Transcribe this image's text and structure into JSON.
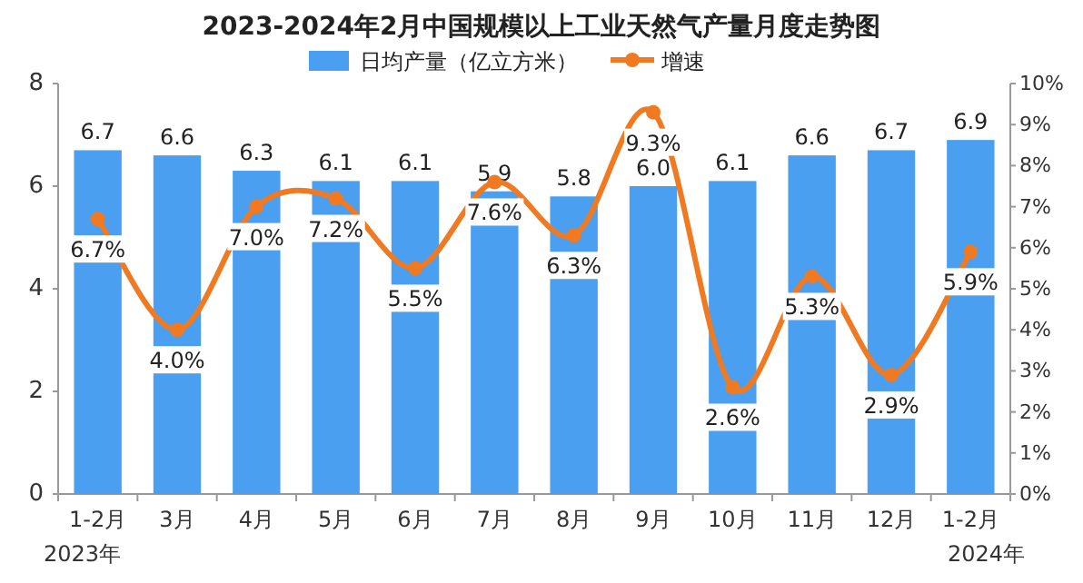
{
  "chart_data": {
    "type": "bar",
    "title": "2023-2024年2月中国规模以上工业天然气产量月度走势图",
    "categories": [
      "1-2月",
      "3月",
      "4月",
      "5月",
      "6月",
      "7月",
      "8月",
      "9月",
      "10月",
      "11月",
      "12月",
      "1-2月"
    ],
    "series": [
      {
        "name": "日均产量（亿立方米）",
        "color": "#4a9ff0",
        "values": [
          6.7,
          6.6,
          6.3,
          6.1,
          6.1,
          5.9,
          5.8,
          6.0,
          6.1,
          6.6,
          6.7,
          6.9
        ],
        "value_labels": [
          "6.7",
          "6.6",
          "6.3",
          "6.1",
          "6.1",
          "5.9",
          "5.8",
          "6.0",
          "6.1",
          "6.6",
          "6.7",
          "6.9"
        ]
      },
      {
        "name": "增速",
        "type": "line",
        "axis": "y2",
        "color": "#f07a22",
        "marker": "circle",
        "values": [
          6.7,
          4.0,
          7.0,
          7.2,
          5.5,
          7.6,
          6.3,
          9.3,
          2.6,
          5.3,
          2.9,
          5.9
        ],
        "value_labels": [
          "6.7%",
          "4.0%",
          "7.0%",
          "7.2%",
          "5.5%",
          "7.6%",
          "6.3%",
          "9.3%",
          "2.6%",
          "5.3%",
          "2.9%",
          "5.9%"
        ]
      }
    ],
    "ylim": [
      0,
      8
    ],
    "yticks": [
      0,
      2,
      4,
      6,
      8
    ],
    "y2lim": [
      0,
      10
    ],
    "y2ticks": [
      {
        "value": 0,
        "label": "0%"
      },
      {
        "value": 1,
        "label": "1%"
      },
      {
        "value": 2,
        "label": "2%"
      },
      {
        "value": 3,
        "label": "3%"
      },
      {
        "value": 4,
        "label": "4%"
      },
      {
        "value": 5,
        "label": "5%"
      },
      {
        "value": 6,
        "label": "6%"
      },
      {
        "value": 7,
        "label": "7%"
      },
      {
        "value": 8,
        "label": "8%"
      },
      {
        "value": 9,
        "label": "9%"
      },
      {
        "value": 10,
        "label": "10%"
      }
    ],
    "legend": "top",
    "grid": false,
    "annotations": [
      "2023年",
      "2024年"
    ]
  }
}
